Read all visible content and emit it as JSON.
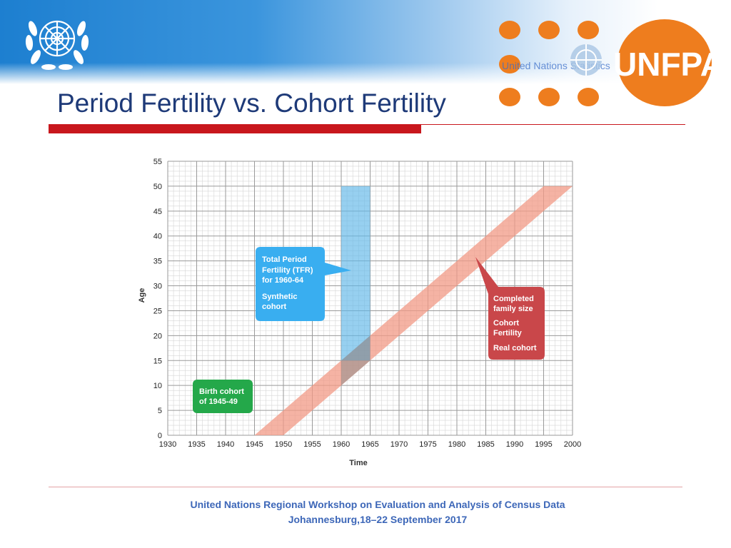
{
  "slide": {
    "title": "Period Fertility vs. Cohort Fertility",
    "partner_text": "United Nations Statistics",
    "logo_text": "UNFPA",
    "footer_line1": "United Nations Regional Workshop on Evaluation and Analysis of Census Data",
    "footer_line2": "Johannesburg,18–22 September 2017",
    "colors": {
      "title": "#1e3a78",
      "accent_red": "#c8171d",
      "unfpa_orange": "#ee7d1e",
      "footer_text": "#3d67b8"
    }
  },
  "diagram": {
    "x_axis_label": "Time",
    "y_axis_label": "Age",
    "x_ticks": [
      "1930",
      "1935",
      "1940",
      "1945",
      "1950",
      "1955",
      "1960",
      "1965",
      "1970",
      "1975",
      "1980",
      "1985",
      "1990",
      "1995",
      "2000"
    ],
    "y_ticks": [
      "0",
      "5",
      "10",
      "15",
      "20",
      "25",
      "30",
      "35",
      "40",
      "45",
      "50",
      "55"
    ],
    "x_range": [
      1930,
      2000
    ],
    "y_range": [
      0,
      55
    ],
    "period_band": {
      "from_year": 1960,
      "to_year": 1965,
      "from_age": 15,
      "to_age": 50,
      "color": "#5fb7e8"
    },
    "cohort_band": {
      "birth_from": 1945,
      "birth_to": 1950,
      "max_age": 50,
      "color": "#f19a86"
    },
    "callout_period": {
      "lines1": [
        "Total Period",
        "Fertility (TFR)",
        "for 1960-64"
      ],
      "lines2": [
        "Synthetic",
        "cohort"
      ],
      "color": "#39aef0"
    },
    "callout_cohort": {
      "lines1": [
        "Completed",
        "family size"
      ],
      "lines2": [
        "Cohort",
        "Fertility"
      ],
      "lines3": [
        "Real cohort"
      ],
      "color": "#c9474a"
    },
    "callout_birth": {
      "lines1": [
        "Birth cohort",
        "of 1945-49"
      ],
      "color": "#24a84a"
    }
  }
}
